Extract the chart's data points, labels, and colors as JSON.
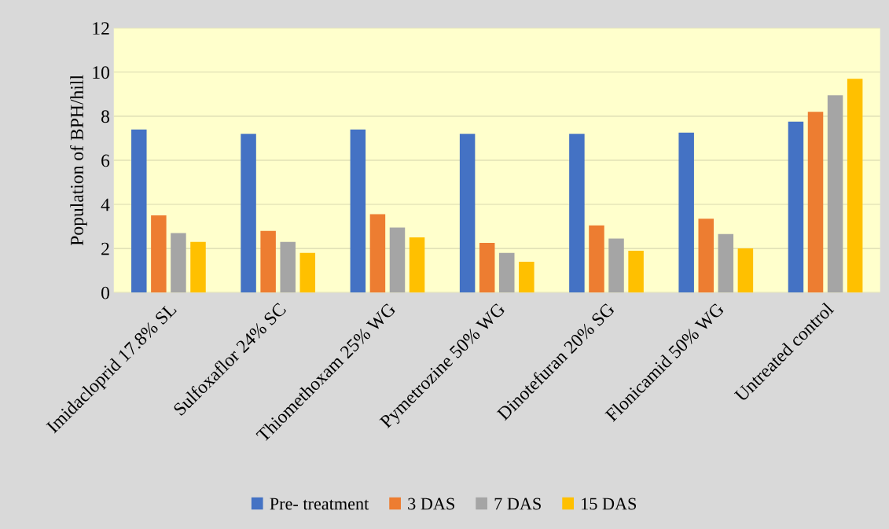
{
  "chart_data": {
    "type": "bar",
    "ylabel": "Population of BPH/hill",
    "categories": [
      "Imidacloprid 17.8% SL",
      "Sulfoxaflor 24% SC",
      "Thiomethoxam 25% WG",
      "Pymetrozine 50% WG",
      "Dinotefuran 20% SG",
      "Flonicamid 50% WG",
      "Untreated control"
    ],
    "series": [
      {
        "name": "Pre- treatment",
        "color": "#4472c4",
        "values": [
          7.4,
          7.2,
          7.4,
          7.2,
          7.2,
          7.25,
          7.75
        ]
      },
      {
        "name": "3 DAS",
        "color": "#ed7d31",
        "values": [
          3.5,
          2.8,
          3.55,
          2.25,
          3.05,
          3.35,
          8.2
        ]
      },
      {
        "name": "7 DAS",
        "color": "#a5a5a5",
        "values": [
          2.7,
          2.3,
          2.95,
          1.8,
          2.45,
          2.65,
          8.95
        ]
      },
      {
        "name": "15 DAS",
        "color": "#ffc000",
        "values": [
          2.3,
          1.8,
          2.5,
          1.4,
          1.9,
          2.0,
          9.7
        ]
      }
    ],
    "ylim": [
      0,
      12
    ],
    "yticks": [
      0,
      2,
      4,
      6,
      8,
      10,
      12
    ],
    "grid": "y",
    "legend": "bottom"
  }
}
